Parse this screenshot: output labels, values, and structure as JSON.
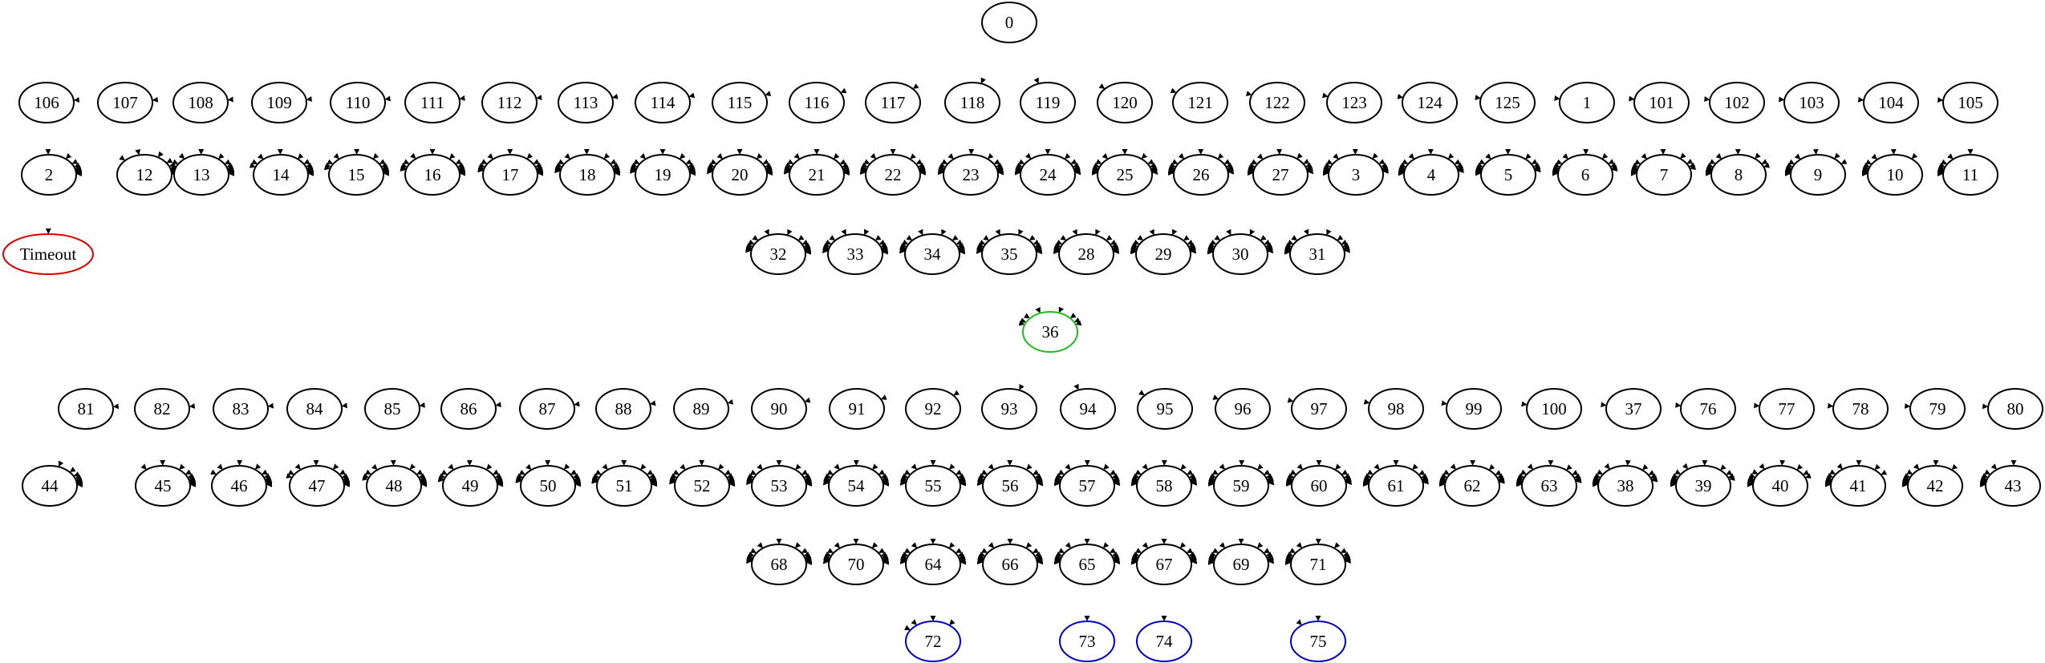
{
  "colors": {
    "default_stroke": "#000000",
    "green_stroke": "#22bb22",
    "red_stroke": "#dd0000",
    "blue_stroke": "#0000cc"
  },
  "nodes": [
    {
      "id": "0",
      "label": "0",
      "color": "default_stroke"
    },
    {
      "id": "106",
      "label": "106",
      "color": "default_stroke"
    },
    {
      "id": "107",
      "label": "107",
      "color": "default_stroke"
    },
    {
      "id": "108",
      "label": "108",
      "color": "default_stroke"
    },
    {
      "id": "109",
      "label": "109",
      "color": "default_stroke"
    },
    {
      "id": "110",
      "label": "110",
      "color": "default_stroke"
    },
    {
      "id": "111",
      "label": "111",
      "color": "default_stroke"
    },
    {
      "id": "112",
      "label": "112",
      "color": "default_stroke"
    },
    {
      "id": "113",
      "label": "113",
      "color": "default_stroke"
    },
    {
      "id": "114",
      "label": "114",
      "color": "default_stroke"
    },
    {
      "id": "115",
      "label": "115",
      "color": "default_stroke"
    },
    {
      "id": "116",
      "label": "116",
      "color": "default_stroke"
    },
    {
      "id": "117",
      "label": "117",
      "color": "default_stroke"
    },
    {
      "id": "118",
      "label": "118",
      "color": "default_stroke"
    },
    {
      "id": "119",
      "label": "119",
      "color": "default_stroke"
    },
    {
      "id": "120",
      "label": "120",
      "color": "default_stroke"
    },
    {
      "id": "121",
      "label": "121",
      "color": "default_stroke"
    },
    {
      "id": "122",
      "label": "122",
      "color": "default_stroke"
    },
    {
      "id": "123",
      "label": "123",
      "color": "default_stroke"
    },
    {
      "id": "124",
      "label": "124",
      "color": "default_stroke"
    },
    {
      "id": "125",
      "label": "125",
      "color": "default_stroke"
    },
    {
      "id": "1",
      "label": "1",
      "color": "default_stroke"
    },
    {
      "id": "101",
      "label": "101",
      "color": "default_stroke"
    },
    {
      "id": "102",
      "label": "102",
      "color": "default_stroke"
    },
    {
      "id": "103",
      "label": "103",
      "color": "default_stroke"
    },
    {
      "id": "104",
      "label": "104",
      "color": "default_stroke"
    },
    {
      "id": "105",
      "label": "105",
      "color": "default_stroke"
    },
    {
      "id": "2",
      "label": "2",
      "color": "default_stroke"
    },
    {
      "id": "12",
      "label": "12",
      "color": "default_stroke"
    },
    {
      "id": "13",
      "label": "13",
      "color": "default_stroke"
    },
    {
      "id": "14",
      "label": "14",
      "color": "default_stroke"
    },
    {
      "id": "15",
      "label": "15",
      "color": "default_stroke"
    },
    {
      "id": "16",
      "label": "16",
      "color": "default_stroke"
    },
    {
      "id": "17",
      "label": "17",
      "color": "default_stroke"
    },
    {
      "id": "18",
      "label": "18",
      "color": "default_stroke"
    },
    {
      "id": "19",
      "label": "19",
      "color": "default_stroke"
    },
    {
      "id": "20",
      "label": "20",
      "color": "default_stroke"
    },
    {
      "id": "21",
      "label": "21",
      "color": "default_stroke"
    },
    {
      "id": "22",
      "label": "22",
      "color": "default_stroke"
    },
    {
      "id": "23",
      "label": "23",
      "color": "default_stroke"
    },
    {
      "id": "24",
      "label": "24",
      "color": "default_stroke"
    },
    {
      "id": "25",
      "label": "25",
      "color": "default_stroke"
    },
    {
      "id": "26",
      "label": "26",
      "color": "default_stroke"
    },
    {
      "id": "27",
      "label": "27",
      "color": "default_stroke"
    },
    {
      "id": "3",
      "label": "3",
      "color": "default_stroke"
    },
    {
      "id": "4",
      "label": "4",
      "color": "default_stroke"
    },
    {
      "id": "5",
      "label": "5",
      "color": "default_stroke"
    },
    {
      "id": "6",
      "label": "6",
      "color": "default_stroke"
    },
    {
      "id": "7",
      "label": "7",
      "color": "default_stroke"
    },
    {
      "id": "8",
      "label": "8",
      "color": "default_stroke"
    },
    {
      "id": "9",
      "label": "9",
      "color": "default_stroke"
    },
    {
      "id": "10",
      "label": "10",
      "color": "default_stroke"
    },
    {
      "id": "11",
      "label": "11",
      "color": "default_stroke"
    },
    {
      "id": "Timeout",
      "label": "Timeout",
      "color": "red_stroke"
    },
    {
      "id": "32",
      "label": "32",
      "color": "default_stroke"
    },
    {
      "id": "33",
      "label": "33",
      "color": "default_stroke"
    },
    {
      "id": "34",
      "label": "34",
      "color": "default_stroke"
    },
    {
      "id": "35",
      "label": "35",
      "color": "default_stroke"
    },
    {
      "id": "28",
      "label": "28",
      "color": "default_stroke"
    },
    {
      "id": "29",
      "label": "29",
      "color": "default_stroke"
    },
    {
      "id": "30",
      "label": "30",
      "color": "default_stroke"
    },
    {
      "id": "31",
      "label": "31",
      "color": "default_stroke"
    },
    {
      "id": "36",
      "label": "36",
      "color": "green_stroke"
    },
    {
      "id": "81",
      "label": "81",
      "color": "default_stroke"
    },
    {
      "id": "82",
      "label": "82",
      "color": "default_stroke"
    },
    {
      "id": "83",
      "label": "83",
      "color": "default_stroke"
    },
    {
      "id": "84",
      "label": "84",
      "color": "default_stroke"
    },
    {
      "id": "85",
      "label": "85",
      "color": "default_stroke"
    },
    {
      "id": "86",
      "label": "86",
      "color": "default_stroke"
    },
    {
      "id": "87",
      "label": "87",
      "color": "default_stroke"
    },
    {
      "id": "88",
      "label": "88",
      "color": "default_stroke"
    },
    {
      "id": "89",
      "label": "89",
      "color": "default_stroke"
    },
    {
      "id": "90",
      "label": "90",
      "color": "default_stroke"
    },
    {
      "id": "91",
      "label": "91",
      "color": "default_stroke"
    },
    {
      "id": "92",
      "label": "92",
      "color": "default_stroke"
    },
    {
      "id": "93",
      "label": "93",
      "color": "default_stroke"
    },
    {
      "id": "94",
      "label": "94",
      "color": "default_stroke"
    },
    {
      "id": "95",
      "label": "95",
      "color": "default_stroke"
    },
    {
      "id": "96",
      "label": "96",
      "color": "default_stroke"
    },
    {
      "id": "97",
      "label": "97",
      "color": "default_stroke"
    },
    {
      "id": "98",
      "label": "98",
      "color": "default_stroke"
    },
    {
      "id": "99",
      "label": "99",
      "color": "default_stroke"
    },
    {
      "id": "100",
      "label": "100",
      "color": "default_stroke"
    },
    {
      "id": "37",
      "label": "37",
      "color": "default_stroke"
    },
    {
      "id": "76",
      "label": "76",
      "color": "default_stroke"
    },
    {
      "id": "77",
      "label": "77",
      "color": "default_stroke"
    },
    {
      "id": "78",
      "label": "78",
      "color": "default_stroke"
    },
    {
      "id": "79",
      "label": "79",
      "color": "default_stroke"
    },
    {
      "id": "80",
      "label": "80",
      "color": "default_stroke"
    },
    {
      "id": "44",
      "label": "44",
      "color": "default_stroke"
    },
    {
      "id": "45",
      "label": "45",
      "color": "default_stroke"
    },
    {
      "id": "46",
      "label": "46",
      "color": "default_stroke"
    },
    {
      "id": "47",
      "label": "47",
      "color": "default_stroke"
    },
    {
      "id": "48",
      "label": "48",
      "color": "default_stroke"
    },
    {
      "id": "49",
      "label": "49",
      "color": "default_stroke"
    },
    {
      "id": "50",
      "label": "50",
      "color": "default_stroke"
    },
    {
      "id": "51",
      "label": "51",
      "color": "default_stroke"
    },
    {
      "id": "52",
      "label": "52",
      "color": "default_stroke"
    },
    {
      "id": "53",
      "label": "53",
      "color": "default_stroke"
    },
    {
      "id": "54",
      "label": "54",
      "color": "default_stroke"
    },
    {
      "id": "55",
      "label": "55",
      "color": "default_stroke"
    },
    {
      "id": "56",
      "label": "56",
      "color": "default_stroke"
    },
    {
      "id": "57",
      "label": "57",
      "color": "default_stroke"
    },
    {
      "id": "58",
      "label": "58",
      "color": "default_stroke"
    },
    {
      "id": "59",
      "label": "59",
      "color": "default_stroke"
    },
    {
      "id": "60",
      "label": "60",
      "color": "default_stroke"
    },
    {
      "id": "61",
      "label": "61",
      "color": "default_stroke"
    },
    {
      "id": "62",
      "label": "62",
      "color": "default_stroke"
    },
    {
      "id": "63",
      "label": "63",
      "color": "default_stroke"
    },
    {
      "id": "38",
      "label": "38",
      "color": "default_stroke"
    },
    {
      "id": "39",
      "label": "39",
      "color": "default_stroke"
    },
    {
      "id": "40",
      "label": "40",
      "color": "default_stroke"
    },
    {
      "id": "41",
      "label": "41",
      "color": "default_stroke"
    },
    {
      "id": "42",
      "label": "42",
      "color": "default_stroke"
    },
    {
      "id": "43",
      "label": "43",
      "color": "default_stroke"
    },
    {
      "id": "68",
      "label": "68",
      "color": "default_stroke"
    },
    {
      "id": "70",
      "label": "70",
      "color": "default_stroke"
    },
    {
      "id": "64",
      "label": "64",
      "color": "default_stroke"
    },
    {
      "id": "66",
      "label": "66",
      "color": "default_stroke"
    },
    {
      "id": "65",
      "label": "65",
      "color": "default_stroke"
    },
    {
      "id": "67",
      "label": "67",
      "color": "default_stroke"
    },
    {
      "id": "69",
      "label": "69",
      "color": "default_stroke"
    },
    {
      "id": "71",
      "label": "71",
      "color": "default_stroke"
    },
    {
      "id": "72",
      "label": "72",
      "color": "blue_stroke"
    },
    {
      "id": "73",
      "label": "73",
      "color": "blue_stroke"
    },
    {
      "id": "74",
      "label": "74",
      "color": "blue_stroke"
    },
    {
      "id": "75",
      "label": "75",
      "color": "blue_stroke"
    }
  ],
  "edge_groups": [
    {
      "from": [
        "0"
      ],
      "to": [
        "106",
        "107",
        "108",
        "109",
        "110",
        "111",
        "112",
        "113",
        "114",
        "115",
        "116",
        "117",
        "118",
        "119",
        "120",
        "121",
        "122",
        "123",
        "124",
        "125",
        "1",
        "101",
        "102",
        "103",
        "104",
        "105"
      ]
    },
    {
      "from": [
        "106",
        "107",
        "108",
        "109",
        "110",
        "111",
        "112",
        "113",
        "114",
        "115",
        "116",
        "117",
        "118",
        "119",
        "120",
        "121",
        "122",
        "123",
        "124",
        "125",
        "1",
        "101",
        "102",
        "103",
        "104",
        "105"
      ],
      "to": [
        "2"
      ]
    },
    {
      "from": [
        "106",
        "107",
        "108",
        "109",
        "110",
        "111",
        "112",
        "113",
        "114",
        "115",
        "116",
        "117",
        "118",
        "119",
        "120",
        "121",
        "122",
        "123",
        "124",
        "125",
        "1",
        "101",
        "102",
        "103",
        "104",
        "105"
      ],
      "to": [
        "12",
        "13",
        "14",
        "15",
        "16",
        "17",
        "18",
        "19",
        "20",
        "21",
        "22",
        "23",
        "24",
        "25",
        "26",
        "27",
        "3",
        "4",
        "5",
        "6",
        "7",
        "8",
        "9",
        "10",
        "11"
      ]
    },
    {
      "from": [
        "2"
      ],
      "to": [
        "Timeout"
      ]
    },
    {
      "from": [
        "12",
        "13",
        "14",
        "15",
        "16",
        "17",
        "18",
        "19",
        "20",
        "21",
        "22",
        "23",
        "24",
        "25",
        "26",
        "27",
        "3",
        "4",
        "5",
        "6",
        "7",
        "8",
        "9",
        "10",
        "11"
      ],
      "to": [
        "32",
        "33",
        "34",
        "35",
        "28",
        "29",
        "30",
        "31"
      ]
    },
    {
      "from": [
        "32",
        "33",
        "34",
        "35",
        "28",
        "29",
        "30",
        "31"
      ],
      "to": [
        "36"
      ]
    },
    {
      "from": [
        "36"
      ],
      "to": [
        "81",
        "82",
        "83",
        "84",
        "85",
        "86",
        "87",
        "88",
        "89",
        "90",
        "91",
        "92",
        "93",
        "94",
        "95",
        "96",
        "97",
        "98",
        "99",
        "100",
        "37",
        "76",
        "77",
        "78",
        "79",
        "80"
      ]
    },
    {
      "from": [
        "81",
        "82",
        "83",
        "84",
        "85",
        "86",
        "87",
        "88",
        "89",
        "90",
        "91",
        "92",
        "93",
        "94",
        "95",
        "96",
        "97",
        "98",
        "99",
        "100",
        "37",
        "76",
        "77",
        "78",
        "79",
        "80"
      ],
      "to": [
        "44",
        "45",
        "46",
        "47",
        "48",
        "49",
        "50",
        "51",
        "52",
        "53",
        "54",
        "55",
        "56",
        "57",
        "58",
        "59",
        "60",
        "61",
        "62",
        "63",
        "38",
        "39",
        "40",
        "41",
        "42",
        "43"
      ]
    },
    {
      "from": [
        "44",
        "45",
        "46",
        "47",
        "48",
        "49",
        "50",
        "51",
        "52",
        "53",
        "54",
        "55",
        "56",
        "57",
        "58",
        "59",
        "60",
        "61",
        "62",
        "63",
        "38",
        "39",
        "40",
        "41",
        "42",
        "43"
      ],
      "to": [
        "68",
        "70",
        "64",
        "66",
        "65",
        "67",
        "69",
        "71"
      ]
    },
    {
      "from": [
        "68",
        "70",
        "64",
        "66"
      ],
      "to": [
        "72"
      ]
    },
    {
      "from": [
        "65"
      ],
      "to": [
        "73"
      ]
    },
    {
      "from": [
        "67"
      ],
      "to": [
        "74"
      ]
    },
    {
      "from": [
        "69"
      ],
      "to": [
        "75"
      ]
    },
    {
      "from": [
        "71"
      ],
      "to": [
        "75"
      ]
    }
  ]
}
